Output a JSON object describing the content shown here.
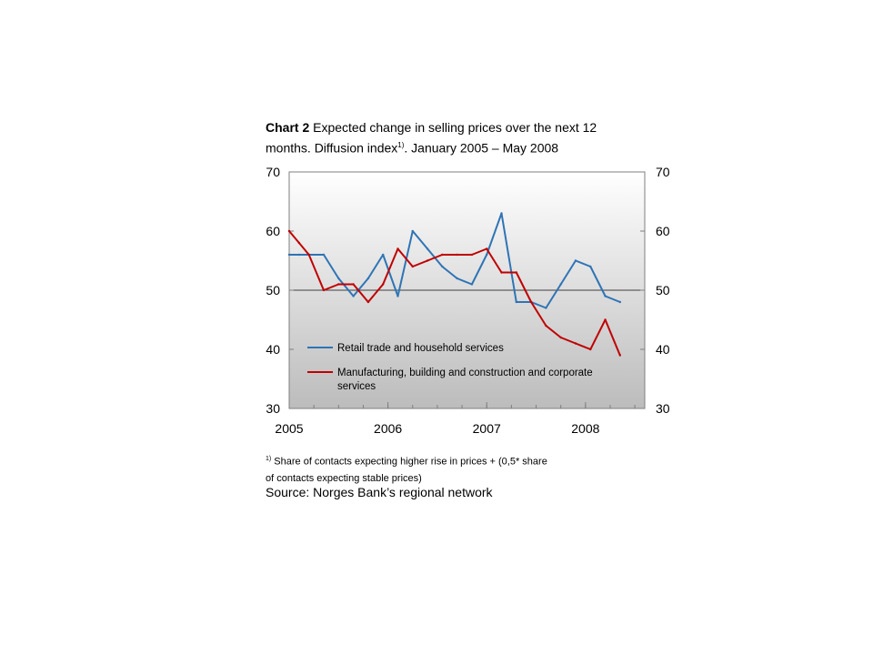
{
  "header": {
    "chart_label": "Chart 2",
    "title_line1": " Expected change in selling prices over the next 12",
    "title_line2_pre": "months. Diffusion index",
    "title_sup": "1)",
    "title_line2_post": ". January 2005 – May 2008"
  },
  "footnote": {
    "marker": "1)",
    "text_line1": " Share of contacts expecting higher rise in prices + (0,5* share",
    "text_line2": "of contacts expecting stable prices)"
  },
  "source": "Source: Norges Bank’s regional network",
  "colors": {
    "series_blue": "#2e74b5",
    "series_red": "#c00000",
    "axis": "#7f7f7f",
    "reference_line": "#404040"
  },
  "chart_data": {
    "type": "line",
    "ylim": [
      30,
      70
    ],
    "yticks": [
      30,
      40,
      50,
      60,
      70
    ],
    "xlim": [
      2005.0,
      2008.6
    ],
    "xticks": [
      2005,
      2006,
      2007,
      2008
    ],
    "xtick_labels": [
      "2005",
      "2006",
      "2007",
      "2008"
    ],
    "reference_y": 50,
    "grid": false,
    "legend_position": "bottom-left",
    "series": [
      {
        "name": "Retail trade and household services",
        "color": "#2e74b5",
        "x": [
          2005.0,
          2005.1,
          2005.2,
          2005.35,
          2005.5,
          2005.65,
          2005.8,
          2005.95,
          2006.1,
          2006.25,
          2006.4,
          2006.55,
          2006.7,
          2006.85,
          2007.0,
          2007.15,
          2007.3,
          2007.45,
          2007.6,
          2007.75,
          2007.9,
          2008.05,
          2008.2,
          2008.35
        ],
        "values": [
          56,
          56,
          56,
          56,
          52,
          49,
          52,
          56,
          49,
          60,
          57,
          54,
          52,
          51,
          56,
          63,
          48,
          48,
          47,
          51,
          55,
          54,
          49,
          48
        ]
      },
      {
        "name": "Manufacturing, building and construction and corporate services",
        "color": "#c00000",
        "x": [
          2005.0,
          2005.1,
          2005.2,
          2005.35,
          2005.5,
          2005.65,
          2005.8,
          2005.95,
          2006.1,
          2006.25,
          2006.4,
          2006.55,
          2006.7,
          2006.85,
          2007.0,
          2007.15,
          2007.3,
          2007.45,
          2007.6,
          2007.75,
          2007.9,
          2008.05,
          2008.2,
          2008.35
        ],
        "values": [
          60,
          58,
          56,
          50,
          51,
          51,
          48,
          51,
          57,
          54,
          55,
          56,
          56,
          56,
          57,
          53,
          53,
          48,
          44,
          42,
          41,
          40,
          45,
          39
        ]
      }
    ]
  }
}
